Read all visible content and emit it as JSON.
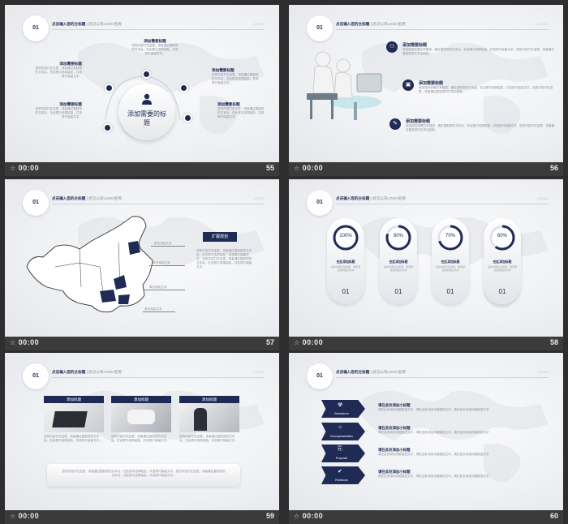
{
  "footer_time": "00:00",
  "header": {
    "num": "01",
    "title": "点击输入您的主标题",
    "subtitle": "| 武汉公司LOGO名称",
    "right": "LOGO"
  },
  "slides": {
    "s55": {
      "page": "55",
      "center_title": "添加需要的标题",
      "items": [
        {
          "title": "添加需要标题",
          "text": "您的内容打在这里，或者通过复制您的文本后，在此框中选择粘贴，并选择只保留文字。"
        },
        {
          "title": "添加需要标题",
          "text": "您的内容打在这里，或者通过复制您的文本后，在此框中选择粘贴，并选择只保留文字。"
        },
        {
          "title": "添加需要标题",
          "text": "您的内容打在这里，或者通过复制您的文本后，在此框中选择粘贴，并选择只保留文字。"
        },
        {
          "title": "添加需要标题",
          "text": "您的内容打在这里，或者通过复制您的文本后，在此框中选择粘贴，并选择只保留文字。"
        },
        {
          "title": "添加需要标题",
          "text": "您的内容打在这里，或者通过复制您的文本后，在此框中选择粘贴，并选择只保留文字。"
        }
      ]
    },
    "s56": {
      "page": "56",
      "items": [
        {
          "title": "添加需要标题",
          "text": "添加您的标题文本描述，通过复制您的文本后，在此框中选择粘贴，并选择只保留文字。您的内容打在这里，或者通过复制您的文本后粘贴。"
        },
        {
          "title": "添加需要标题",
          "text": "添加您的标题文本描述，通过复制您的文本后，在此框中选择粘贴，并选择只保留文字。您的内容打在这里，或者通过复制您的文本后粘贴。"
        },
        {
          "title": "添加需要标题",
          "text": "添加您的标题文本描述，通过复制您的文本后，在此框中选择粘贴，并选择只保留文字。您的内容打在这里，或者通过复制您的文本后粘贴。"
        }
      ]
    },
    "s57": {
      "page": "57",
      "tag": "扩展规划",
      "labels": [
        "单击添加文本",
        "单击添加文本",
        "单击添加文本",
        "单击添加文本"
      ],
      "text": "您的内容打在这里，或者通过复制您的文本后，在此框中选择粘贴，并选择只保留文字。您的内容打在这里，或者通过复制您的文本后，在此框中选择粘贴，并选择只保留文字。"
    },
    "s58": {
      "page": "58",
      "pills": [
        {
          "pct": "100%",
          "value": 100,
          "title": "在此添加标题",
          "sub": "您的内容打在这里，或者通过复制您的文本",
          "num": "01"
        },
        {
          "pct": "80%",
          "value": 80,
          "title": "在此添加标题",
          "sub": "您的内容打在这里，或者通过复制您的文本",
          "num": "01"
        },
        {
          "pct": "70%",
          "value": 70,
          "title": "在此添加标题",
          "sub": "您的内容打在这里，或者通过复制您的文本",
          "num": "01"
        },
        {
          "pct": "60%",
          "value": 60,
          "title": "在此添加标题",
          "sub": "您的内容打在这里，或者通过复制您的文本",
          "num": "01"
        }
      ]
    },
    "s59": {
      "page": "59",
      "cards": [
        {
          "title": "添加标题",
          "text": "您的内容打在这里，或者通过复制您的文本后，在此框中选择粘贴，并选择只保留文字。"
        },
        {
          "title": "添加标题",
          "text": "您的内容打在这里，或者通过复制您的文本后，在此框中选择粘贴，并选择只保留文字。"
        },
        {
          "title": "添加标题",
          "text": "您的内容打在这里，或者通过复制您的文本后，在此框中选择粘贴，并选择只保留文字。"
        }
      ],
      "bottom_text": "您的内容打在这里，或者通过复制您的文本后，在此框中选择粘贴，并选择只保留文字。您的内容打在这里，或者通过复制您的文本后，在此框中选择粘贴，并选择只保留文字。"
    },
    "s60": {
      "page": "60",
      "steps": [
        {
          "label": "Brainstorm",
          "title": "请在此处添加小标题",
          "text": "请在此处添加详细描述文字，请在此处添加详细描述文字，请在此处添加详细描述文字"
        },
        {
          "label": "Conceptualization",
          "title": "请在此处添加小标题",
          "text": "请在此处添加详细描述文字，请在此处添加详细描述文字，请在此处添加详细描述文字"
        },
        {
          "label": "Proposal",
          "title": "请在此处添加小标题",
          "text": "请在此处添加详细描述文字，请在此处添加详细描述文字，请在此处添加详细描述文字"
        },
        {
          "label": "Revisions",
          "title": "请在此处添加小标题",
          "text": "请在此处添加详细描述文字，请在此处添加详细描述文字，请在此处添加详细描述文字"
        }
      ]
    }
  }
}
